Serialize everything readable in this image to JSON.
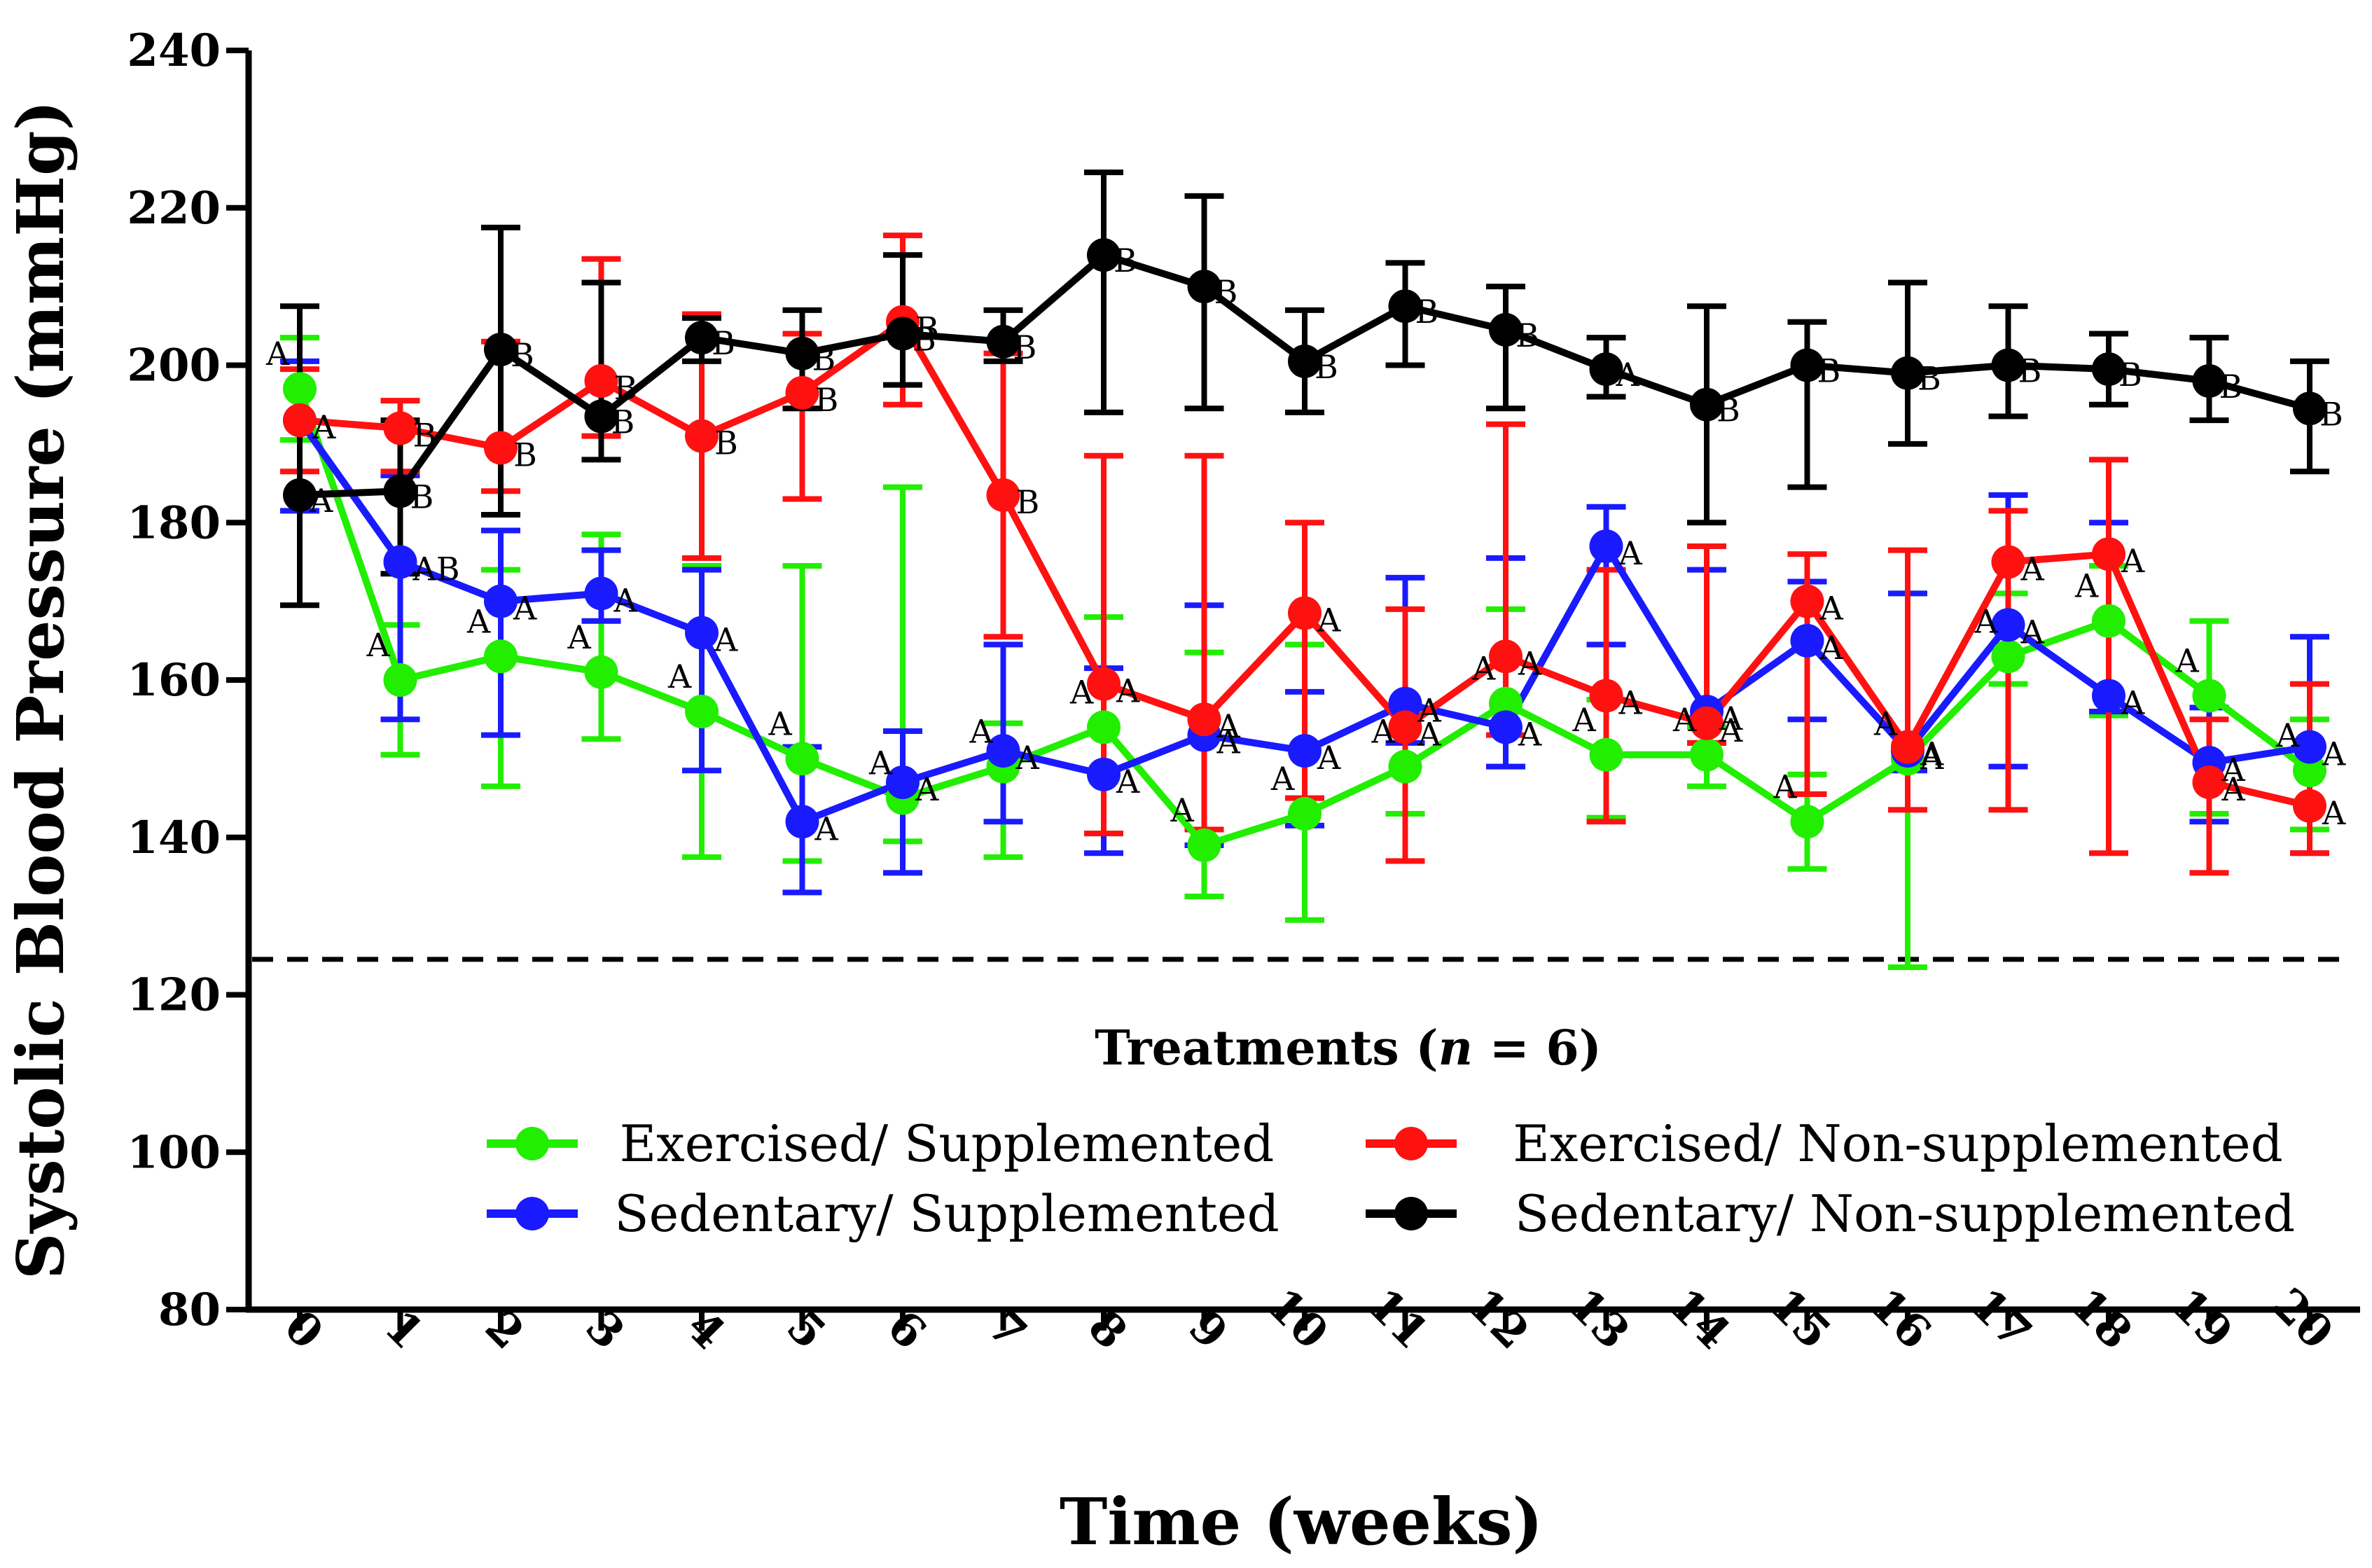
{
  "chart_data": {
    "type": "line",
    "xlabel": "Time (weeks)",
    "ylabel": "Systolic Blood Pressure (mmHg)",
    "ylim": [
      80,
      240
    ],
    "yticks": [
      80,
      100,
      120,
      140,
      160,
      180,
      200,
      220,
      240
    ],
    "x": [
      0,
      1,
      2,
      3,
      4,
      5,
      6,
      7,
      8,
      9,
      10,
      11,
      12,
      13,
      14,
      15,
      16,
      17,
      18,
      19,
      20
    ],
    "xtick_labels": [
      "0",
      "1",
      "2",
      "3",
      "4",
      "5",
      "6",
      "7",
      "8",
      "9",
      "10",
      "11",
      "12",
      "13",
      "14",
      "15",
      "16",
      "17",
      "18",
      "19",
      "20"
    ],
    "reference_line": {
      "y": 124.5,
      "style": "dashed"
    },
    "legend": {
      "title_prefix": "Treatments (",
      "title_n": "n",
      "title_suffix": " = 6)",
      "placement": "bottom-center"
    },
    "series": [
      {
        "name": "Exercised/ Supplemented",
        "color": "#22ee00",
        "values": [
          197,
          160,
          163,
          161,
          156,
          150,
          145,
          149,
          154,
          139,
          143,
          149,
          157,
          150.5,
          150.5,
          142,
          150,
          163,
          167.5,
          158,
          148.5
        ],
        "err_lower": [
          190.5,
          150.5,
          146.5,
          152.5,
          137.5,
          137,
          139.5,
          137.5,
          140.5,
          132.5,
          129.5,
          143,
          149,
          142.5,
          146.5,
          136,
          123.5,
          159.5,
          155.5,
          143,
          141
        ],
        "err_upper": [
          203.5,
          167,
          174,
          178.5,
          174.5,
          174.5,
          184.5,
          154.5,
          168,
          163.5,
          164.5,
          156,
          169,
          157.5,
          154,
          148,
          171,
          171,
          174.5,
          167.5,
          155
        ],
        "sig_labels": [
          "A",
          "A",
          "A",
          "A",
          "A",
          "A",
          "A",
          "A",
          "A",
          "A",
          "A",
          "A",
          "A",
          "A",
          "A",
          "A",
          "A",
          "A",
          "A",
          "A",
          "A"
        ]
      },
      {
        "name": "Sedentary/ Supplemented",
        "color": "#1a1aff",
        "values": [
          193,
          175,
          170,
          171,
          166,
          142,
          147,
          151,
          148,
          153,
          151,
          157,
          154,
          177,
          156,
          165,
          151,
          167,
          158,
          149.5,
          151.5
        ],
        "err_lower": [
          181.5,
          155,
          153,
          167.5,
          148.5,
          133,
          135.5,
          142,
          138,
          139,
          141.5,
          152,
          149,
          164.5,
          152,
          155,
          148.5,
          149,
          156,
          142,
          138
        ],
        "err_upper": [
          200.5,
          186,
          179,
          176.5,
          174,
          151.5,
          153.5,
          164.5,
          161.5,
          169.5,
          158.5,
          173,
          175.5,
          182,
          174,
          172.5,
          171,
          183.5,
          180,
          156.5,
          165.5
        ],
        "sig_labels": [
          "A",
          "AB",
          "A",
          "A",
          "A",
          "A",
          "A",
          "A",
          "A",
          "A",
          "A",
          "A",
          "A",
          "A",
          "A",
          "A",
          "A",
          "A",
          "A",
          "A",
          "A"
        ]
      },
      {
        "name": "Exercised/ Non-supplemented",
        "color": "#ff1111",
        "values": [
          193,
          192,
          189.5,
          198,
          191,
          196.5,
          205.5,
          183.5,
          159.5,
          155,
          168.5,
          154,
          163,
          158,
          154.5,
          170,
          151.5,
          175,
          176,
          147,
          144
        ],
        "err_lower": [
          186.5,
          186.5,
          184,
          191,
          175.5,
          183,
          195,
          165.5,
          140.5,
          141,
          145,
          137,
          153,
          142,
          152,
          145.5,
          143.5,
          143.5,
          138,
          135.5,
          138
        ],
        "err_upper": [
          199.5,
          195.5,
          203,
          213.5,
          206.5,
          204,
          216.5,
          201.5,
          188.5,
          188.5,
          180,
          169,
          192.5,
          174,
          177,
          176,
          176.5,
          181.5,
          188,
          155,
          159.5
        ],
        "sig_labels": [
          "A",
          "B",
          "B",
          "B",
          "B",
          "B",
          "B",
          "B",
          "A",
          "A",
          "A",
          "A",
          "A",
          "A",
          "A",
          "A",
          "A",
          "A",
          "A",
          "A",
          "A"
        ]
      },
      {
        "name": "Sedentary/ Non-supplemented",
        "color": "#000000",
        "values": [
          183.5,
          184,
          202,
          193.5,
          203.5,
          201.5,
          204,
          203,
          214,
          210,
          200.5,
          207.5,
          204.5,
          199.5,
          195,
          200,
          199,
          200,
          199.5,
          198,
          194.5
        ],
        "err_lower": [
          169.5,
          173.5,
          181,
          188,
          200.5,
          194.5,
          197.5,
          200.5,
          194,
          194.5,
          194,
          200,
          194.5,
          196,
          180,
          184.5,
          190,
          193.5,
          195,
          193,
          186.5
        ],
        "err_upper": [
          207.5,
          193,
          217.5,
          210.5,
          206,
          207,
          214,
          207,
          224.5,
          221.5,
          207,
          213,
          210,
          203.5,
          207.5,
          205.5,
          210.5,
          207.5,
          204,
          203.5,
          200.5
        ],
        "sig_labels": [
          "A",
          "B",
          "B",
          "B",
          "B",
          "B",
          "B",
          "B",
          "B",
          "B",
          "B",
          "B",
          "B",
          "A",
          "B",
          "B",
          "B",
          "B",
          "B",
          "B",
          "B"
        ]
      }
    ]
  }
}
